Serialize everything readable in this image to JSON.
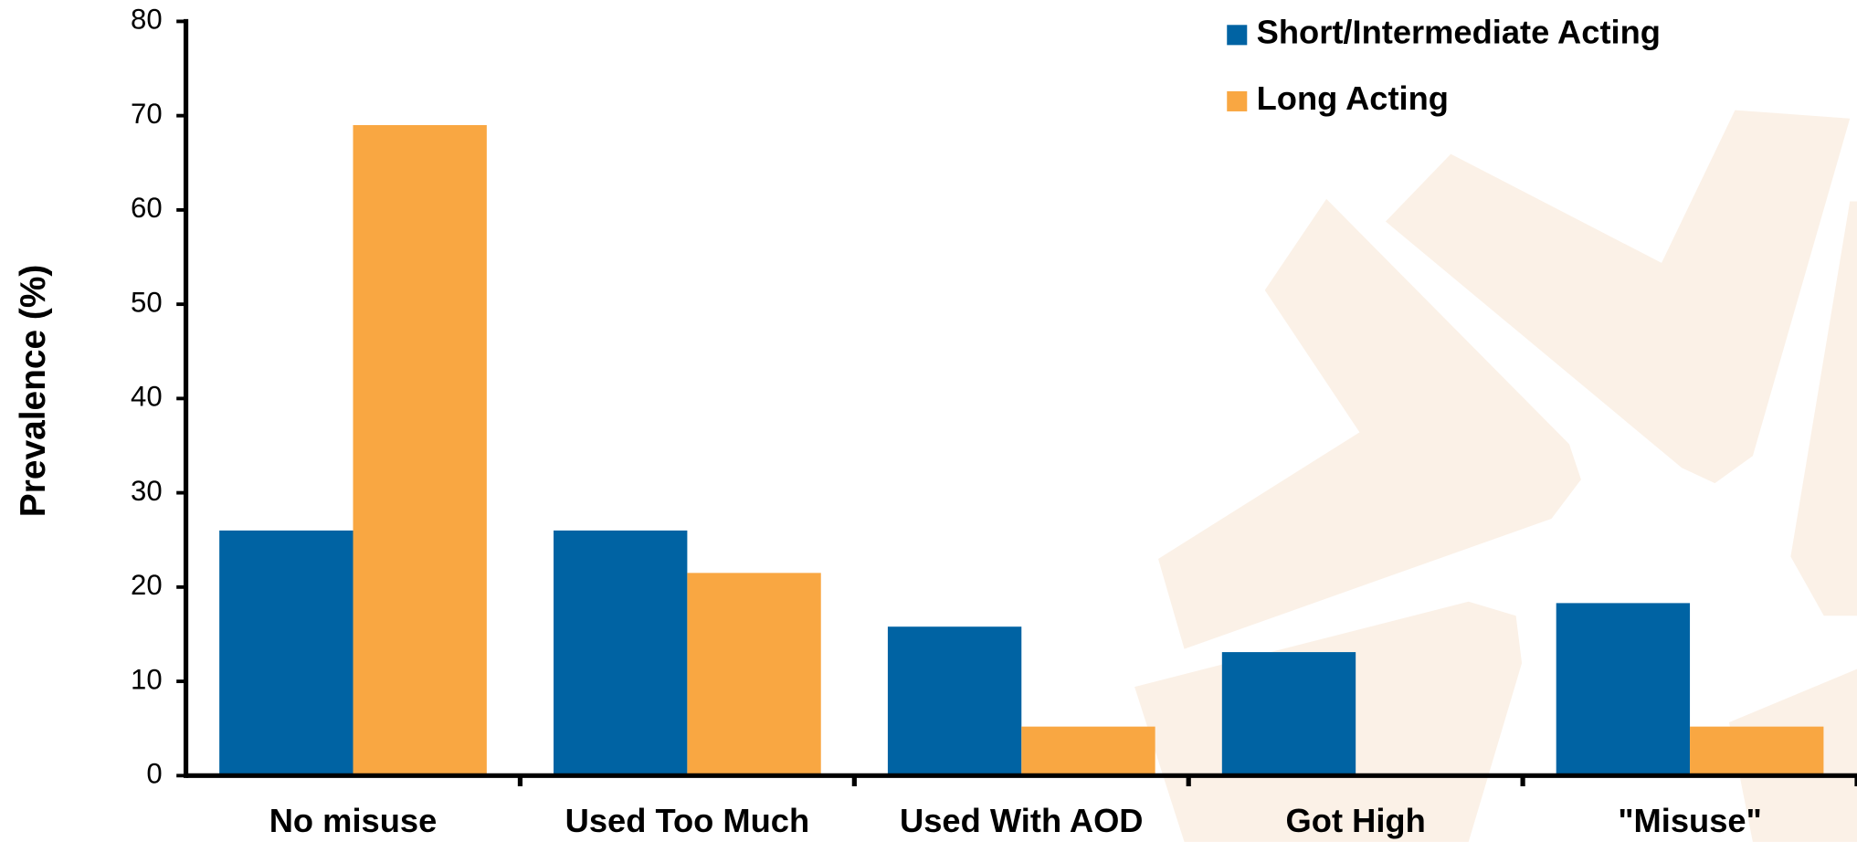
{
  "chart_data": {
    "type": "bar",
    "y_label": "Prevalence (%)",
    "categories": [
      "No misuse",
      "Used Too Much",
      "Used With AOD",
      "Got High",
      "\"Misuse\""
    ],
    "series": [
      {
        "name": "Short/Intermediate Acting",
        "color": "#0063a3",
        "values": [
          26,
          26,
          15.8,
          13.1,
          18.3
        ]
      },
      {
        "name": "Long Acting",
        "color": "#f9a742",
        "values": [
          69,
          21.5,
          5.2,
          null,
          5.2
        ]
      }
    ],
    "ylim": [
      0,
      80
    ],
    "yticks": [
      0,
      10,
      20,
      30,
      40,
      50,
      60,
      70,
      80
    ],
    "legend": "top-right"
  }
}
